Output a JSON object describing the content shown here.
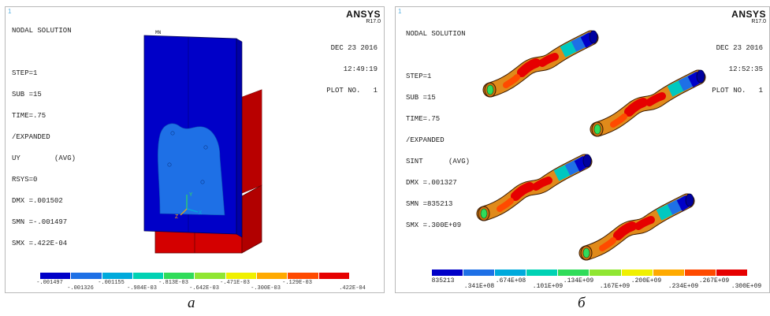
{
  "panel_a": {
    "corner_number": "1",
    "brand": "ANSYS",
    "version": "R17.0",
    "info_lines": [
      "NODAL SOLUTION",
      "",
      "STEP=1",
      "SUB =15",
      "TIME=.75",
      "/EXPANDED",
      "UY        (AVG)",
      "RSYS=0",
      "DMX =.001502",
      "SMN =-.001497",
      "SMX =.422E-04"
    ],
    "date": "DEC 23 2016",
    "time": "12:49:19",
    "plot_no": "PLOT NO.   1",
    "mn_label": "MN",
    "axis_labels": {
      "y": "Y",
      "x": "X",
      "z": "Z"
    },
    "legend_colors": [
      "#0000c8",
      "#1e70e6",
      "#00aadc",
      "#00d2b4",
      "#30dc5a",
      "#90e632",
      "#f0f000",
      "#ffaa00",
      "#ff4a00",
      "#e60000"
    ],
    "legend_top": [
      "-.001497",
      "-.001155",
      "-.813E-03",
      "-.471E-03",
      "-.129E-03"
    ],
    "legend_bottom": [
      "-.001326",
      "-.984E-03",
      "-.642E-03",
      "-.300E-03",
      ".422E-04"
    ],
    "caption": "а"
  },
  "panel_b": {
    "corner_number": "1",
    "brand": "ANSYS",
    "version": "R17.0",
    "info_lines": [
      "NODAL SOLUTION",
      "",
      "STEP=1",
      "SUB =15",
      "TIME=.75",
      "/EXPANDED",
      "SINT      (AVG)",
      "DMX =.001327",
      "SMN =835213",
      "SMX =.300E+09"
    ],
    "date": "DEC 23 2016",
    "time": "12:52:35",
    "plot_no": "PLOT NO.   1",
    "legend_colors": [
      "#0000c8",
      "#1e70e6",
      "#00aadc",
      "#00d2b4",
      "#30dc5a",
      "#90e632",
      "#f0f000",
      "#ffaa00",
      "#ff4a00",
      "#e60000"
    ],
    "legend_top": [
      "835213",
      ".674E+08",
      ".134E+09",
      ".200E+09",
      ".267E+09"
    ],
    "legend_bottom": [
      ".341E+08",
      ".101E+09",
      ".167E+09",
      ".234E+09",
      ".300E+09"
    ],
    "caption": "б"
  }
}
